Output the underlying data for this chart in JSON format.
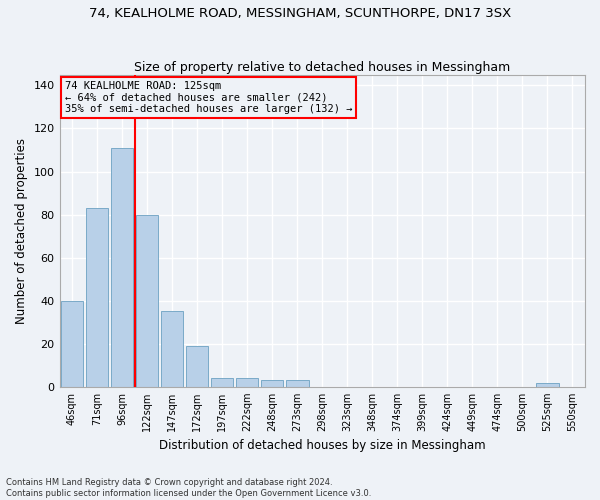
{
  "title": "74, KEALHOLME ROAD, MESSINGHAM, SCUNTHORPE, DN17 3SX",
  "subtitle": "Size of property relative to detached houses in Messingham",
  "xlabel": "Distribution of detached houses by size in Messingham",
  "ylabel": "Number of detached properties",
  "bar_color": "#b8d0e8",
  "bar_edge_color": "#7aaac8",
  "categories": [
    "46sqm",
    "71sqm",
    "96sqm",
    "122sqm",
    "147sqm",
    "172sqm",
    "197sqm",
    "222sqm",
    "248sqm",
    "273sqm",
    "298sqm",
    "323sqm",
    "348sqm",
    "374sqm",
    "399sqm",
    "424sqm",
    "449sqm",
    "474sqm",
    "500sqm",
    "525sqm",
    "550sqm"
  ],
  "values": [
    40,
    83,
    111,
    80,
    35,
    19,
    4,
    4,
    3,
    3,
    0,
    0,
    0,
    0,
    0,
    0,
    0,
    0,
    0,
    2,
    0
  ],
  "ylim": [
    0,
    145
  ],
  "yticks": [
    0,
    20,
    40,
    60,
    80,
    100,
    120,
    140
  ],
  "vline_pos": 2.5,
  "annotation_title": "74 KEALHOLME ROAD: 125sqm",
  "annotation_line1": "← 64% of detached houses are smaller (242)",
  "annotation_line2": "35% of semi-detached houses are larger (132) →",
  "footer_line1": "Contains HM Land Registry data © Crown copyright and database right 2024.",
  "footer_line2": "Contains public sector information licensed under the Open Government Licence v3.0.",
  "background_color": "#eef2f7",
  "grid_color": "#ffffff"
}
